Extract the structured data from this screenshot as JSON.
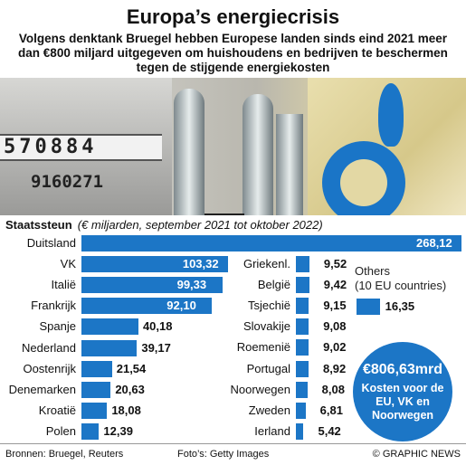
{
  "title": "Europa’s energiecrisis",
  "subtitle": "Volgens denktank Bruegel hebben Europese landen sinds eind 2021 meer dan €800 miljard uitgegeven om huishoudens en bedrijven te beschermen tegen de stijgende energiekosten",
  "photo": {
    "digits": "570884",
    "counter": "9160271"
  },
  "colors": {
    "bar": "#1c76c6",
    "label_inside": "#ffffff"
  },
  "chart_data": {
    "type": "bar",
    "orientation": "horizontal",
    "xlabel": "Staatssteun",
    "unit": "(€ miljarden, september 2021 tot oktober 2022)",
    "groups": [
      {
        "categories": [
          "Duitsland",
          "VK",
          "Italië",
          "Frankrijk",
          "Spanje",
          "Nederland",
          "Oostenrijk",
          "Denemarken",
          "Kroatië",
          "Polen"
        ],
        "values": [
          268.12,
          103.32,
          99.33,
          92.1,
          40.18,
          39.17,
          21.54,
          20.63,
          18.08,
          12.39
        ],
        "labels": [
          "268,12",
          "103,32",
          "99,33",
          "92,10",
          "40,18",
          "39,17",
          "21,54",
          "20,63",
          "18,08",
          "12,39"
        ]
      },
      {
        "categories": [
          "Griekenl.",
          "België",
          "Tsjechië",
          "Slovakije",
          "Roemenië",
          "Portugal",
          "Noorwegen",
          "Zweden",
          "Ierland"
        ],
        "values": [
          9.52,
          9.42,
          9.15,
          9.08,
          9.02,
          8.92,
          8.08,
          6.81,
          5.42
        ],
        "labels": [
          "9,52",
          "9,42",
          "9,15",
          "9,08",
          "9,02",
          "8,92",
          "8,08",
          "6,81",
          "5,42"
        ]
      },
      {
        "label": "Others\n(10 EU countries)",
        "values": [
          16.35
        ],
        "labels": [
          "16,35"
        ]
      }
    ]
  },
  "total": {
    "amount": "€806,63mrd",
    "description": "Kosten voor de EU, VK en Noorwegen"
  },
  "footer": {
    "sources": "Bronnen: Bruegel, Reuters",
    "photos": "Foto’s: Getty Images",
    "credit": "© GRAPHIC NEWS"
  }
}
